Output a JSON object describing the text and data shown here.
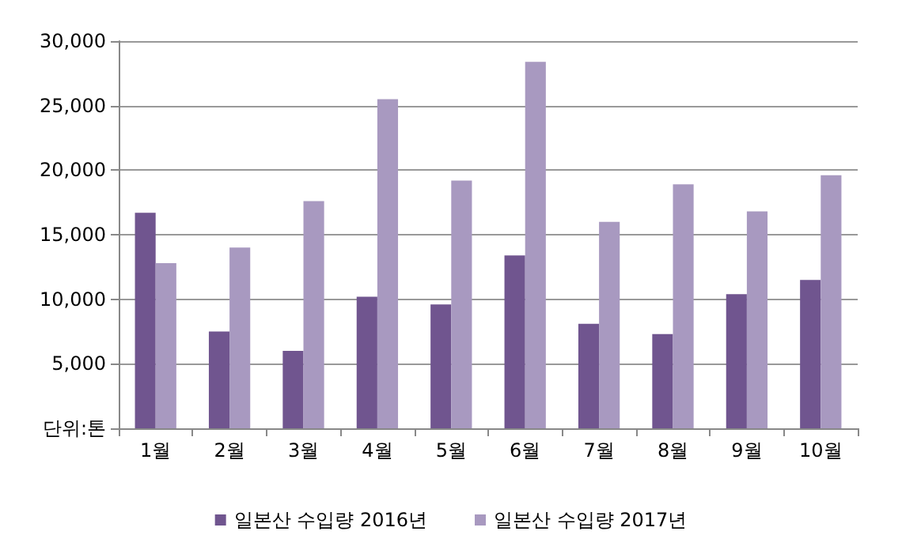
{
  "chart_data": {
    "type": "bar",
    "categories": [
      "1월",
      "2월",
      "3월",
      "4월",
      "5월",
      "6월",
      "7월",
      "8월",
      "9월",
      "10월"
    ],
    "series": [
      {
        "name": "일본산 수입량 2016년",
        "color": "#70558f",
        "values": [
          16700,
          7500,
          6000,
          10200,
          9600,
          13400,
          8100,
          7300,
          10400,
          11500
        ]
      },
      {
        "name": "일본산 수입량 2017년",
        "color": "#a899c0",
        "values": [
          12800,
          14000,
          17600,
          25500,
          19200,
          28400,
          16000,
          18900,
          16800,
          19600
        ]
      }
    ],
    "ylim": [
      0,
      30000
    ],
    "yticks": [
      {
        "value": 0,
        "label": "단위:톤"
      },
      {
        "value": 5000,
        "label": "5,000"
      },
      {
        "value": 10000,
        "label": "10,000"
      },
      {
        "value": 15000,
        "label": "15,000"
      },
      {
        "value": 20000,
        "label": "20,000"
      },
      {
        "value": 25000,
        "label": "25,000"
      },
      {
        "value": 30000,
        "label": "30,000"
      }
    ],
    "grid": "y",
    "legend": "bottom"
  }
}
